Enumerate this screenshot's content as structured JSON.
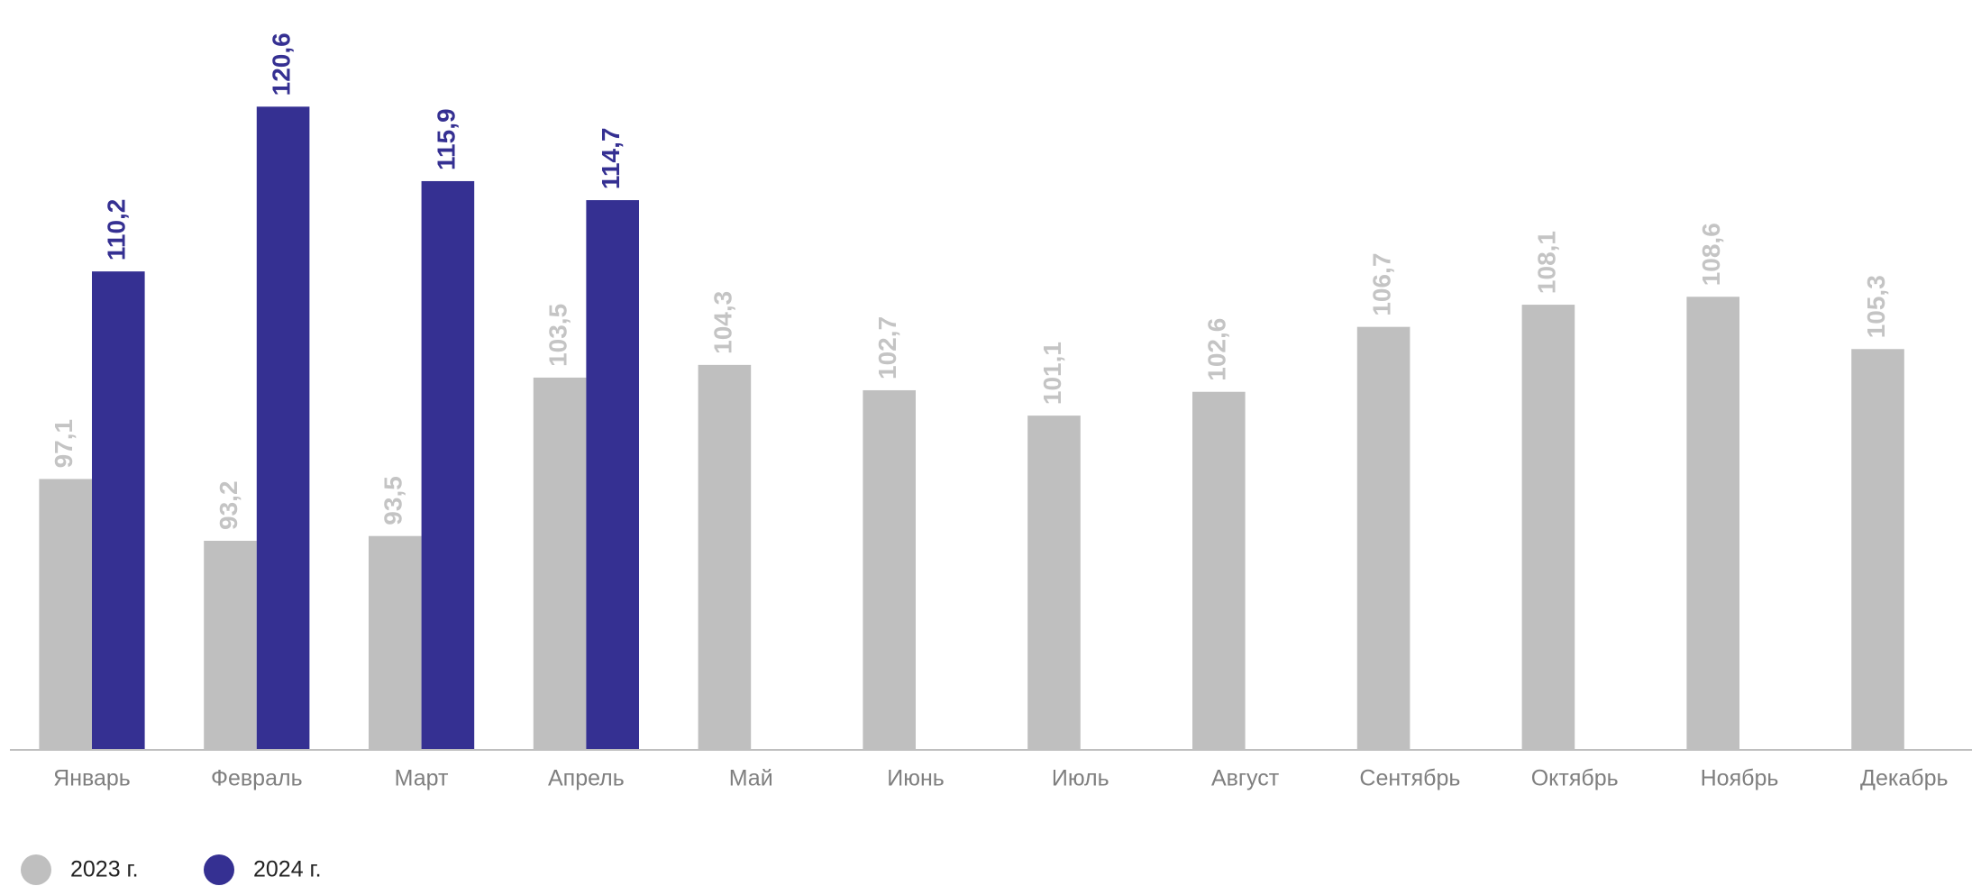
{
  "chart_data": {
    "type": "bar",
    "categories": [
      "Январь",
      "Февраль",
      "Март",
      "Апрель",
      "Май",
      "Июнь",
      "Июль",
      "Август",
      "Сентябрь",
      "Октябрь",
      "Ноябрь",
      "Декабрь"
    ],
    "series": [
      {
        "name": "2023 г.",
        "color": "#bfbfbf",
        "values": [
          97.1,
          93.2,
          93.5,
          103.5,
          104.3,
          102.7,
          101.1,
          102.6,
          106.7,
          108.1,
          108.6,
          105.3
        ],
        "value_labels": [
          "97,1",
          "93,2",
          "93,5",
          "103,5",
          "104,3",
          "102,7",
          "101,1",
          "102,6",
          "106,7",
          "108,1",
          "108,6",
          "105,3"
        ]
      },
      {
        "name": "2024 г.",
        "color": "#353092",
        "values": [
          110.2,
          120.6,
          115.9,
          114.7,
          null,
          null,
          null,
          null,
          null,
          null,
          null,
          null
        ],
        "value_labels": [
          "110,2",
          "120,6",
          "115,9",
          "114,7",
          null,
          null,
          null,
          null,
          null,
          null,
          null,
          null
        ]
      }
    ],
    "ylim": [
      80,
      125
    ]
  }
}
